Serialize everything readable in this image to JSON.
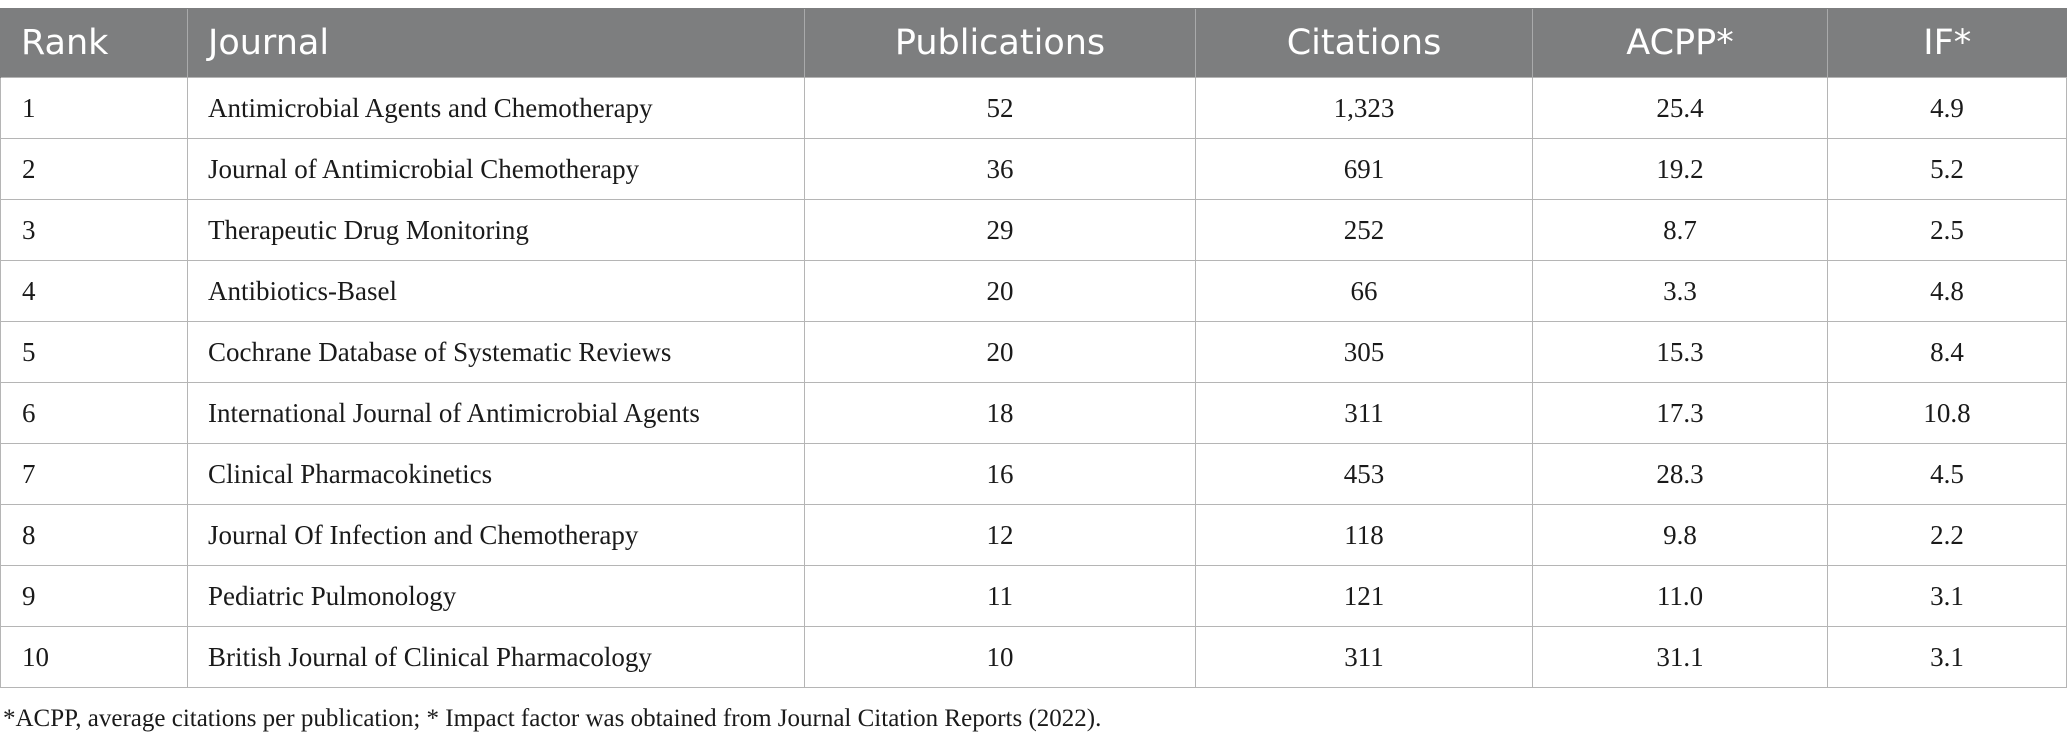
{
  "table": {
    "headers": [
      "Rank",
      "Journal",
      "Publications",
      "Citations",
      "ACPP*",
      "IF*"
    ],
    "rows": [
      [
        "1",
        "Antimicrobial Agents and Chemotherapy",
        "52",
        "1,323",
        "25.4",
        "4.9"
      ],
      [
        "2",
        "Journal of Antimicrobial Chemotherapy",
        "36",
        "691",
        "19.2",
        "5.2"
      ],
      [
        "3",
        "Therapeutic Drug Monitoring",
        "29",
        "252",
        "8.7",
        "2.5"
      ],
      [
        "4",
        "Antibiotics-Basel",
        "20",
        "66",
        "3.3",
        "4.8"
      ],
      [
        "5",
        "Cochrane Database of Systematic Reviews",
        "20",
        "305",
        "15.3",
        "8.4"
      ],
      [
        "6",
        "International Journal of Antimicrobial Agents",
        "18",
        "311",
        "17.3",
        "10.8"
      ],
      [
        "7",
        "Clinical Pharmacokinetics",
        "16",
        "453",
        "28.3",
        "4.5"
      ],
      [
        "8",
        "Journal Of Infection and Chemotherapy",
        "12",
        "118",
        "9.8",
        "2.2"
      ],
      [
        "9",
        "Pediatric Pulmonology",
        "11",
        "121",
        "11.0",
        "3.1"
      ],
      [
        "10",
        "British Journal of Clinical Pharmacology",
        "10",
        "311",
        "31.1",
        "3.1"
      ]
    ]
  },
  "footnote": "*ACPP, average citations per publication; * Impact factor was obtained from Journal Citation Reports (2022).",
  "colors": {
    "header_bg": "#7d7e7f",
    "header_text": "#ffffff",
    "border": "#b5b5b5",
    "body_text": "#1a1a1a"
  }
}
